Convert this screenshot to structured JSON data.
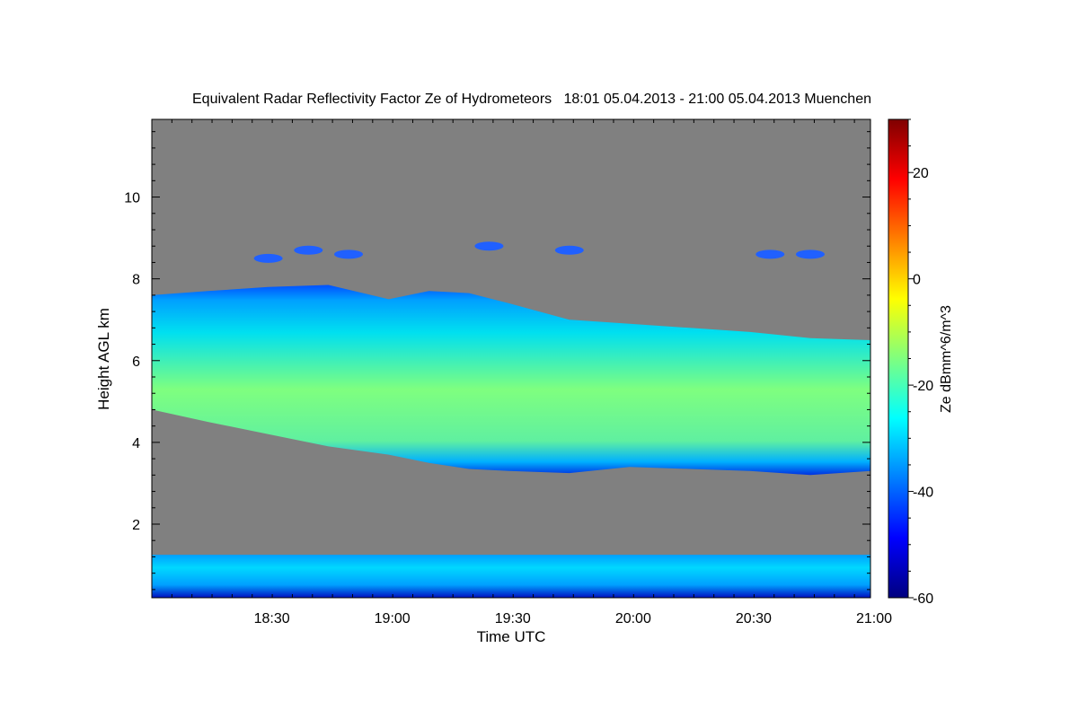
{
  "chart_data": {
    "type": "heatmap",
    "title": "Equivalent Radar Reflectivity Factor Ze of Hydrometeors   18:01 05.04.2013 - 21:00 05.04.2013 Muenchen",
    "xlabel": "Time UTC",
    "ylabel": "Height AGL km",
    "colorbar_label": "Ze dBmm^6/m^3",
    "x_range": [
      "18:01",
      "21:00"
    ],
    "x_ticks": [
      "18:30",
      "19:00",
      "19:30",
      "20:00",
      "20:30",
      "21:00"
    ],
    "y_range": [
      0.2,
      11.9
    ],
    "y_ticks": [
      "2",
      "4",
      "6",
      "8",
      "10"
    ],
    "colorbar_range": [
      -60,
      30
    ],
    "colorbar_ticks": [
      "20",
      "0",
      "-20",
      "-40",
      "-60"
    ],
    "colormap": [
      "#00007f",
      "#0000ff",
      "#007fff",
      "#00ffff",
      "#7fff7f",
      "#ffff00",
      "#ff7f00",
      "#ff0000",
      "#7f0000"
    ],
    "no_data_color": "#808080",
    "grid": false,
    "cloud_layer": {
      "description_free": true,
      "time": [
        "18:01",
        "18:15",
        "18:30",
        "18:45",
        "19:00",
        "19:10",
        "19:20",
        "19:30",
        "19:45",
        "20:00",
        "20:15",
        "20:30",
        "20:45",
        "21:00"
      ],
      "top_km": [
        7.6,
        7.7,
        7.8,
        7.85,
        7.5,
        7.7,
        7.65,
        7.4,
        7.0,
        6.9,
        6.8,
        6.7,
        6.55,
        6.5
      ],
      "base_km": [
        4.8,
        4.5,
        4.2,
        3.9,
        3.7,
        3.5,
        3.35,
        3.3,
        3.25,
        3.4,
        3.35,
        3.3,
        3.2,
        3.3
      ],
      "peak_ze": -15
    },
    "upper_patches": [
      {
        "time": "18:30",
        "height_km": 8.5
      },
      {
        "time": "18:40",
        "height_km": 8.7
      },
      {
        "time": "18:50",
        "height_km": 8.6
      },
      {
        "time": "19:25",
        "height_km": 8.8
      },
      {
        "time": "19:45",
        "height_km": 8.7
      },
      {
        "time": "20:35",
        "height_km": 8.6
      },
      {
        "time": "20:45",
        "height_km": 8.6
      }
    ],
    "boundary_layer": {
      "base_km": 0.2,
      "top_km": 1.25,
      "ze_range": [
        -45,
        -15
      ]
    }
  }
}
